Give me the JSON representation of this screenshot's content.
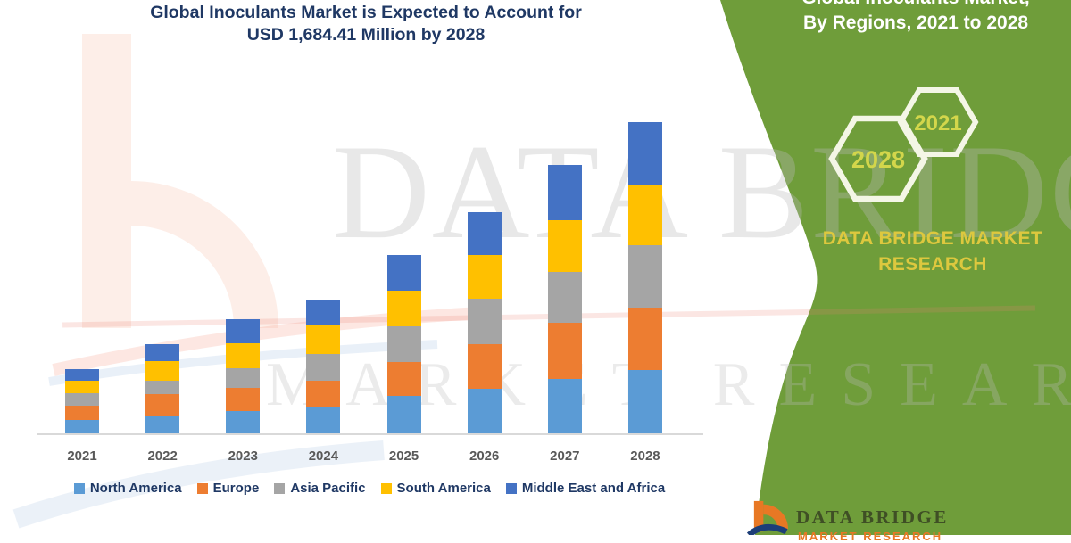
{
  "chart": {
    "title_line1": "Global Inoculants Market is Expected to Account for",
    "title_line2": "USD 1,684.41 Million by 2028"
  },
  "chart_data": {
    "type": "bar",
    "stacked": true,
    "title": "Global Inoculants Market is Expected to Account for USD 1,684.41 Million by 2028",
    "unit": "USD Million",
    "xlabel": "",
    "ylabel": "",
    "grid": false,
    "legend_position": "bottom",
    "categories": [
      "2021",
      "2022",
      "2023",
      "2024",
      "2025",
      "2026",
      "2027",
      "2028"
    ],
    "series": [
      {
        "name": "North America",
        "color": "#5B9BD5",
        "values": [
          72,
          92,
          121,
          145,
          203,
          241,
          294,
          343
        ]
      },
      {
        "name": "Europe",
        "color": "#ED7D31",
        "values": [
          77,
          121,
          125,
          140,
          183,
          241,
          304,
          338
        ]
      },
      {
        "name": "Asia Pacific",
        "color": "#A5A5A5",
        "values": [
          68,
          72,
          106,
          145,
          193,
          246,
          275,
          338
        ]
      },
      {
        "name": "South America",
        "color": "#FFC000",
        "values": [
          68,
          106,
          135,
          159,
          193,
          237,
          280,
          328
        ]
      },
      {
        "name": "Middle East and Africa",
        "color": "#4472C4",
        "values": [
          63,
          92,
          130,
          135,
          193,
          232,
          299,
          338
        ]
      }
    ],
    "totals_estimated": [
      348,
      483,
      617,
      724,
      965,
      1197,
      1452,
      1685
    ],
    "stated_2028_total": 1684.41
  },
  "right_panel": {
    "heading_line1": "Global Inoculants Market,",
    "heading_line2": "By Regions, 2021 to 2028",
    "hex_large_year": "2028",
    "hex_small_year": "2021",
    "brand_line1": "DATA BRIDGE MARKET",
    "brand_line2": "RESEARCH",
    "panel_color": "#6f9d3a"
  },
  "watermark": {
    "line1": "DATA BRIDGE",
    "line2": "MARKET RESEARCH"
  },
  "footer_logo": {
    "brand": "DATA BRIDGE",
    "sub": "MARKET RESEARCH"
  }
}
